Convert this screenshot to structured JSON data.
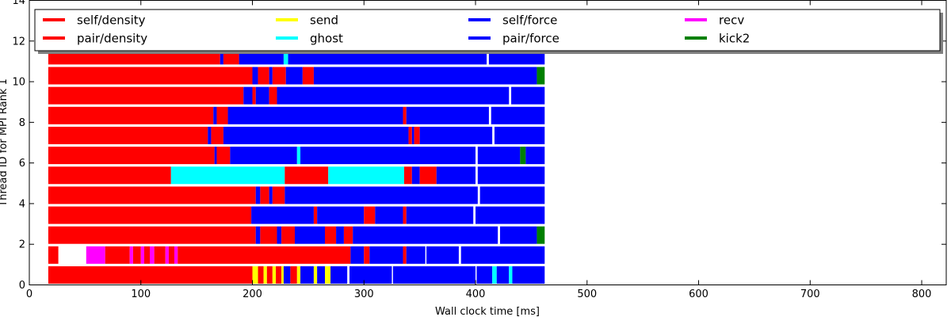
{
  "chart_data": {
    "type": "bar",
    "orientation": "horizontal",
    "subtype": "task-timeline",
    "title": "",
    "xlabel": "Wall clock time [ms]",
    "ylabel": "Thread ID for MPI Rank 1",
    "xlim": [
      0,
      822
    ],
    "ylim": [
      0,
      14
    ],
    "xticks": [
      0,
      100,
      200,
      300,
      400,
      500,
      600,
      700,
      800
    ],
    "yticks": [
      0,
      2,
      4,
      6,
      8,
      10,
      12,
      14
    ],
    "grid": false,
    "legend": {
      "placement": "top",
      "columns": 5,
      "entries": [
        {
          "name": "self/density",
          "color": "#ff0000"
        },
        {
          "name": "pair/density",
          "color": "#ff0000"
        },
        {
          "name": "send",
          "color": "#ffff00"
        },
        {
          "name": "ghost",
          "color": "#00ffff"
        },
        {
          "name": "self/force",
          "color": "#0000ff"
        },
        {
          "name": "pair/force",
          "color": "#0000ff"
        },
        {
          "name": "recv",
          "color": "#ff00ff"
        },
        {
          "name": "kick2",
          "color": "#008000"
        }
      ]
    },
    "task_colors": {
      "density": "#ff0000",
      "send": "#ffff00",
      "ghost": "#00ffff",
      "force": "#0000ff",
      "recv": "#ff00ff",
      "kick2": "#008000"
    },
    "threads": [
      {
        "thread": 0,
        "tasks": [
          {
            "type": "density",
            "start": 17,
            "end": 200
          },
          {
            "type": "send",
            "start": 200,
            "end": 205
          },
          {
            "type": "density",
            "start": 205,
            "end": 210
          },
          {
            "type": "send",
            "start": 210,
            "end": 213
          },
          {
            "type": "density",
            "start": 213,
            "end": 218
          },
          {
            "type": "send",
            "start": 218,
            "end": 221
          },
          {
            "type": "density",
            "start": 221,
            "end": 226
          },
          {
            "type": "send",
            "start": 226,
            "end": 228
          },
          {
            "type": "force",
            "start": 228,
            "end": 234
          },
          {
            "type": "density",
            "start": 234,
            "end": 240
          },
          {
            "type": "send",
            "start": 240,
            "end": 243
          },
          {
            "type": "force",
            "start": 243,
            "end": 255
          },
          {
            "type": "send",
            "start": 255,
            "end": 258
          },
          {
            "type": "force",
            "start": 258,
            "end": 265
          },
          {
            "type": "send",
            "start": 265,
            "end": 270
          },
          {
            "type": "force",
            "start": 270,
            "end": 285
          },
          {
            "type": "force",
            "start": 287,
            "end": 325
          },
          {
            "type": "force",
            "start": 326,
            "end": 400
          },
          {
            "type": "force",
            "start": 401,
            "end": 415
          },
          {
            "type": "ghost",
            "start": 415,
            "end": 419
          },
          {
            "type": "force",
            "start": 419,
            "end": 430
          },
          {
            "type": "ghost",
            "start": 430,
            "end": 433
          },
          {
            "type": "force",
            "start": 433,
            "end": 462
          }
        ]
      },
      {
        "thread": 1,
        "tasks": [
          {
            "type": "density",
            "start": 17,
            "end": 26
          },
          {
            "type": "recv",
            "start": 51,
            "end": 68
          },
          {
            "type": "density",
            "start": 68,
            "end": 90
          },
          {
            "type": "recv",
            "start": 90,
            "end": 93
          },
          {
            "type": "density",
            "start": 93,
            "end": 100
          },
          {
            "type": "recv",
            "start": 100,
            "end": 103
          },
          {
            "type": "density",
            "start": 103,
            "end": 108
          },
          {
            "type": "recv",
            "start": 108,
            "end": 112
          },
          {
            "type": "density",
            "start": 112,
            "end": 122
          },
          {
            "type": "recv",
            "start": 122,
            "end": 125
          },
          {
            "type": "density",
            "start": 125,
            "end": 130
          },
          {
            "type": "recv",
            "start": 130,
            "end": 133
          },
          {
            "type": "density",
            "start": 133,
            "end": 288
          },
          {
            "type": "force",
            "start": 288,
            "end": 300
          },
          {
            "type": "density",
            "start": 300,
            "end": 305
          },
          {
            "type": "force",
            "start": 305,
            "end": 335
          },
          {
            "type": "density",
            "start": 335,
            "end": 338
          },
          {
            "type": "force",
            "start": 338,
            "end": 355
          },
          {
            "type": "force",
            "start": 356,
            "end": 385
          },
          {
            "type": "force",
            "start": 387,
            "end": 462
          }
        ]
      },
      {
        "thread": 2,
        "tasks": [
          {
            "type": "density",
            "start": 17,
            "end": 203
          },
          {
            "type": "force",
            "start": 203,
            "end": 207
          },
          {
            "type": "density",
            "start": 207,
            "end": 222
          },
          {
            "type": "force",
            "start": 222,
            "end": 226
          },
          {
            "type": "density",
            "start": 226,
            "end": 238
          },
          {
            "type": "force",
            "start": 238,
            "end": 265
          },
          {
            "type": "density",
            "start": 265,
            "end": 275
          },
          {
            "type": "force",
            "start": 275,
            "end": 282
          },
          {
            "type": "density",
            "start": 282,
            "end": 290
          },
          {
            "type": "force",
            "start": 290,
            "end": 420
          },
          {
            "type": "force",
            "start": 422,
            "end": 455
          },
          {
            "type": "kick2",
            "start": 455,
            "end": 462
          }
        ]
      },
      {
        "thread": 3,
        "tasks": [
          {
            "type": "density",
            "start": 17,
            "end": 199
          },
          {
            "type": "force",
            "start": 199,
            "end": 255
          },
          {
            "type": "density",
            "start": 255,
            "end": 258
          },
          {
            "type": "force",
            "start": 258,
            "end": 300
          },
          {
            "type": "density",
            "start": 300,
            "end": 310
          },
          {
            "type": "force",
            "start": 310,
            "end": 335
          },
          {
            "type": "density",
            "start": 335,
            "end": 338
          },
          {
            "type": "force",
            "start": 338,
            "end": 398
          },
          {
            "type": "force",
            "start": 400,
            "end": 462
          }
        ]
      },
      {
        "thread": 4,
        "tasks": [
          {
            "type": "density",
            "start": 17,
            "end": 203
          },
          {
            "type": "force",
            "start": 203,
            "end": 207
          },
          {
            "type": "density",
            "start": 207,
            "end": 215
          },
          {
            "type": "force",
            "start": 215,
            "end": 218
          },
          {
            "type": "density",
            "start": 218,
            "end": 229
          },
          {
            "type": "force",
            "start": 229,
            "end": 402
          },
          {
            "type": "force",
            "start": 404,
            "end": 462
          }
        ]
      },
      {
        "thread": 5,
        "tasks": [
          {
            "type": "density",
            "start": 17,
            "end": 127
          },
          {
            "type": "ghost",
            "start": 127,
            "end": 229
          },
          {
            "type": "density",
            "start": 229,
            "end": 268
          },
          {
            "type": "ghost",
            "start": 268,
            "end": 336
          },
          {
            "type": "density",
            "start": 336,
            "end": 343
          },
          {
            "type": "force",
            "start": 343,
            "end": 350
          },
          {
            "type": "density",
            "start": 350,
            "end": 365
          },
          {
            "type": "force",
            "start": 365,
            "end": 400
          },
          {
            "type": "force",
            "start": 402,
            "end": 462
          }
        ]
      },
      {
        "thread": 6,
        "tasks": [
          {
            "type": "density",
            "start": 17,
            "end": 166
          },
          {
            "type": "force",
            "start": 166,
            "end": 168
          },
          {
            "type": "density",
            "start": 168,
            "end": 180
          },
          {
            "type": "force",
            "start": 180,
            "end": 240
          },
          {
            "type": "ghost",
            "start": 240,
            "end": 243
          },
          {
            "type": "force",
            "start": 243,
            "end": 400
          },
          {
            "type": "force",
            "start": 402,
            "end": 440
          },
          {
            "type": "kick2",
            "start": 440,
            "end": 445
          },
          {
            "type": "force",
            "start": 445,
            "end": 462
          }
        ]
      },
      {
        "thread": 7,
        "tasks": [
          {
            "type": "density",
            "start": 17,
            "end": 160
          },
          {
            "type": "force",
            "start": 160,
            "end": 163
          },
          {
            "type": "density",
            "start": 163,
            "end": 174
          },
          {
            "type": "force",
            "start": 174,
            "end": 340
          },
          {
            "type": "density",
            "start": 340,
            "end": 343
          },
          {
            "type": "force",
            "start": 343,
            "end": 345
          },
          {
            "type": "density",
            "start": 345,
            "end": 350
          },
          {
            "type": "force",
            "start": 350,
            "end": 415
          },
          {
            "type": "force",
            "start": 417,
            "end": 462
          }
        ]
      },
      {
        "thread": 8,
        "tasks": [
          {
            "type": "density",
            "start": 17,
            "end": 165
          },
          {
            "type": "force",
            "start": 165,
            "end": 168
          },
          {
            "type": "density",
            "start": 168,
            "end": 178
          },
          {
            "type": "force",
            "start": 178,
            "end": 335
          },
          {
            "type": "density",
            "start": 335,
            "end": 338
          },
          {
            "type": "force",
            "start": 338,
            "end": 412
          },
          {
            "type": "force",
            "start": 414,
            "end": 462
          }
        ]
      },
      {
        "thread": 9,
        "tasks": [
          {
            "type": "density",
            "start": 17,
            "end": 192
          },
          {
            "type": "force",
            "start": 192,
            "end": 200
          },
          {
            "type": "density",
            "start": 200,
            "end": 203
          },
          {
            "type": "force",
            "start": 203,
            "end": 215
          },
          {
            "type": "density",
            "start": 215,
            "end": 222
          },
          {
            "type": "force",
            "start": 222,
            "end": 430
          },
          {
            "type": "force",
            "start": 432,
            "end": 462
          }
        ]
      },
      {
        "thread": 10,
        "tasks": [
          {
            "type": "density",
            "start": 17,
            "end": 200
          },
          {
            "type": "force",
            "start": 200,
            "end": 205
          },
          {
            "type": "density",
            "start": 205,
            "end": 215
          },
          {
            "type": "force",
            "start": 215,
            "end": 218
          },
          {
            "type": "density",
            "start": 218,
            "end": 230
          },
          {
            "type": "force",
            "start": 230,
            "end": 245
          },
          {
            "type": "density",
            "start": 245,
            "end": 255
          },
          {
            "type": "force",
            "start": 255,
            "end": 455
          },
          {
            "type": "kick2",
            "start": 455,
            "end": 462
          }
        ]
      },
      {
        "thread": 11,
        "tasks": [
          {
            "type": "density",
            "start": 17,
            "end": 171
          },
          {
            "type": "force",
            "start": 171,
            "end": 174
          },
          {
            "type": "density",
            "start": 174,
            "end": 188
          },
          {
            "type": "force",
            "start": 188,
            "end": 228
          },
          {
            "type": "ghost",
            "start": 228,
            "end": 232
          },
          {
            "type": "force",
            "start": 232,
            "end": 410
          },
          {
            "type": "force",
            "start": 412,
            "end": 462
          }
        ]
      }
    ]
  }
}
